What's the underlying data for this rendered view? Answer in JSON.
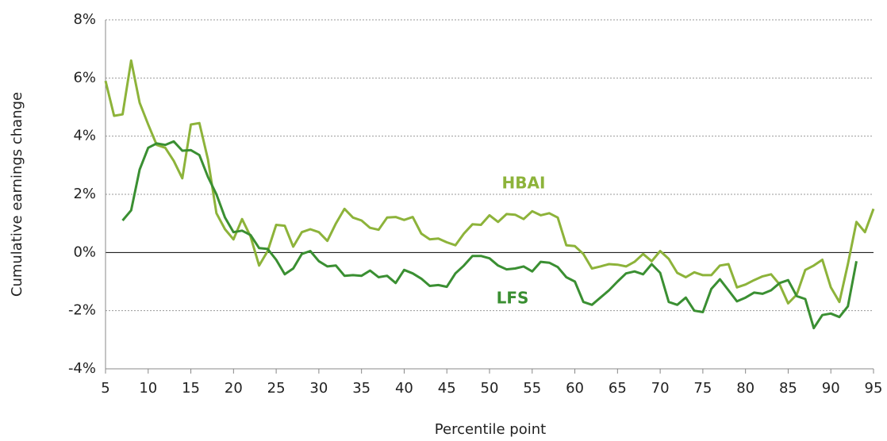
{
  "chart_data": {
    "type": "line",
    "xlabel": "Percentile point",
    "ylabel": "Cumulative earnings change",
    "x": [
      5,
      6,
      7,
      8,
      9,
      10,
      11,
      12,
      13,
      14,
      15,
      16,
      17,
      18,
      19,
      20,
      21,
      22,
      23,
      24,
      25,
      26,
      27,
      28,
      29,
      30,
      31,
      32,
      33,
      34,
      35,
      36,
      37,
      38,
      39,
      40,
      41,
      42,
      43,
      44,
      45,
      46,
      47,
      48,
      49,
      50,
      51,
      52,
      53,
      54,
      55,
      56,
      57,
      58,
      59,
      60,
      61,
      62,
      63,
      64,
      65,
      66,
      67,
      68,
      69,
      70,
      71,
      72,
      73,
      74,
      75,
      76,
      77,
      78,
      79,
      80,
      81,
      82,
      83,
      84,
      85,
      86,
      87,
      88,
      89,
      90,
      91,
      92,
      93,
      94,
      95
    ],
    "series": [
      {
        "name": "HBAI",
        "color": "#8db33a",
        "values": [
          5.9,
          4.7,
          4.75,
          6.6,
          5.15,
          4.4,
          3.7,
          3.6,
          3.15,
          2.55,
          4.4,
          4.45,
          3.2,
          1.35,
          0.8,
          0.45,
          1.15,
          0.55,
          -0.45,
          0.05,
          0.95,
          0.92,
          0.2,
          0.7,
          0.8,
          0.7,
          0.4,
          1.0,
          1.5,
          1.2,
          1.1,
          0.85,
          0.78,
          1.2,
          1.22,
          1.12,
          1.22,
          0.65,
          0.45,
          0.48,
          0.35,
          0.25,
          0.65,
          0.97,
          0.95,
          1.28,
          1.05,
          1.32,
          1.3,
          1.15,
          1.42,
          1.28,
          1.35,
          1.2,
          0.25,
          0.22,
          -0.05,
          -0.55,
          -0.48,
          -0.4,
          -0.42,
          -0.48,
          -0.32,
          -0.05,
          -0.3,
          0.05,
          -0.22,
          -0.7,
          -0.85,
          -0.68,
          -0.78,
          -0.78,
          -0.45,
          -0.4,
          -1.2,
          -1.1,
          -0.95,
          -0.82,
          -0.75,
          -1.1,
          -1.75,
          -1.45,
          -0.6,
          -0.45,
          -0.25,
          -1.2,
          -1.7,
          -0.4,
          1.05,
          0.7,
          1.5
        ]
      },
      {
        "name": "LFS",
        "color": "#3a8f32",
        "values": [
          null,
          null,
          1.1,
          1.45,
          2.85,
          3.6,
          3.75,
          3.7,
          3.82,
          3.5,
          3.52,
          3.35,
          2.6,
          2.0,
          1.2,
          0.7,
          0.75,
          0.6,
          0.15,
          0.12,
          -0.25,
          -0.75,
          -0.55,
          -0.05,
          0.05,
          -0.3,
          -0.48,
          -0.45,
          -0.8,
          -0.78,
          -0.8,
          -0.62,
          -0.85,
          -0.8,
          -1.05,
          -0.6,
          -0.72,
          -0.9,
          -1.15,
          -1.12,
          -1.18,
          -0.72,
          -0.45,
          -0.12,
          -0.12,
          -0.2,
          -0.45,
          -0.58,
          -0.55,
          -0.48,
          -0.65,
          -0.32,
          -0.35,
          -0.5,
          -0.85,
          -1.0,
          -1.7,
          -1.8,
          -1.55,
          -1.3,
          -1.0,
          -0.72,
          -0.65,
          -0.75,
          -0.4,
          -0.7,
          -1.7,
          -1.8,
          -1.55,
          -2.0,
          -2.05,
          -1.25,
          -0.92,
          -1.3,
          -1.68,
          -1.55,
          -1.38,
          -1.42,
          -1.3,
          -1.05,
          -0.95,
          -1.5,
          -1.6,
          -2.6,
          -2.15,
          -2.1,
          -2.22,
          -1.85,
          -0.3,
          null,
          null
        ]
      }
    ],
    "xlim": [
      5,
      95
    ],
    "xticks": [
      5,
      10,
      15,
      20,
      25,
      30,
      35,
      40,
      45,
      50,
      55,
      60,
      65,
      70,
      75,
      80,
      85,
      90,
      95
    ],
    "ylim": [
      -4,
      8
    ],
    "yticks": [
      {
        "value": -4,
        "label": "-4%"
      },
      {
        "value": -2,
        "label": "-2%"
      },
      {
        "value": 0,
        "label": "0%"
      },
      {
        "value": 2,
        "label": "2%"
      },
      {
        "value": 4,
        "label": "4%"
      },
      {
        "value": 6,
        "label": "6%"
      },
      {
        "value": 8,
        "label": "8%"
      }
    ],
    "grid": true
  }
}
